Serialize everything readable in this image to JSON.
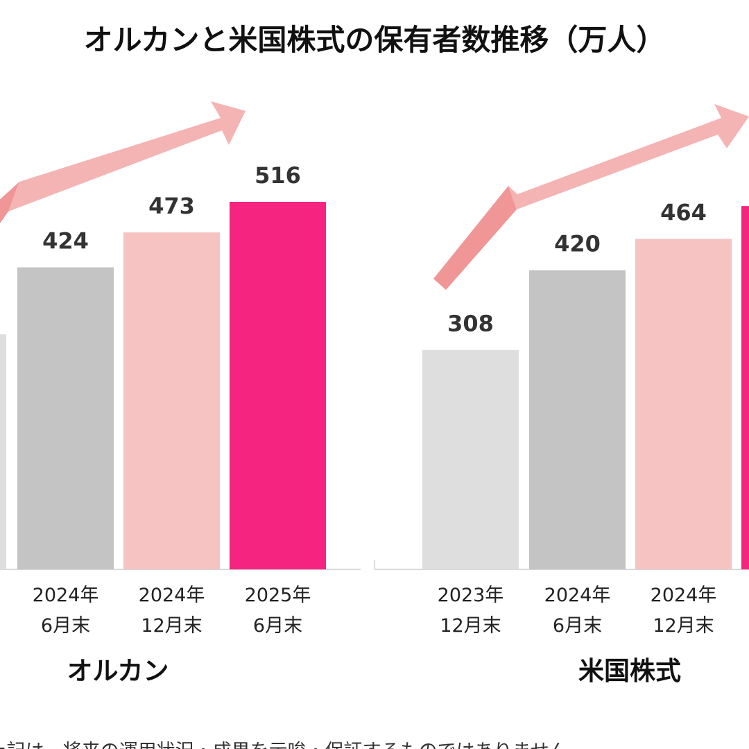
{
  "chart_data": {
    "type": "bar",
    "title": "オルカンと米国株式の保有者数推移（万人）",
    "groups": [
      {
        "name": "オルカン",
        "bars": [
          {
            "label": [
              "",
              ""
            ],
            "value": 330
          },
          {
            "label": [
              "2024年",
              "6月末"
            ],
            "value": 424
          },
          {
            "label": [
              "2024年",
              "12月末"
            ],
            "value": 473
          },
          {
            "label": [
              "2025年",
              "6月末"
            ],
            "value": 516
          }
        ]
      },
      {
        "name": "米国株式",
        "bars": [
          {
            "label": [
              "2023年",
              "12月末"
            ],
            "value": 308
          },
          {
            "label": [
              "2024年",
              "6月末"
            ],
            "value": 420
          },
          {
            "label": [
              "2024年",
              "12月末"
            ],
            "value": 464
          },
          {
            "label": [
              "",
              ""
            ],
            "value": 510
          }
        ]
      }
    ],
    "colors": [
      "#dedede",
      "#c4c4c4",
      "#f6c2c2",
      "#f42480"
    ],
    "arrow_color": "#f4b4b4",
    "footnote": "※上記は、将来の運用状況・成果を示唆・保証するものではありません。"
  }
}
